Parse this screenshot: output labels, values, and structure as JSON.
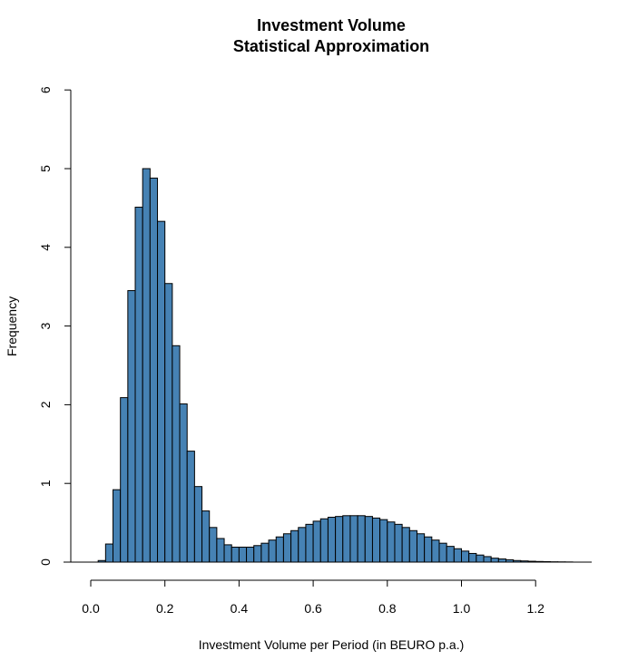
{
  "chart_data": {
    "type": "bar",
    "title": "Investment Volume",
    "subtitle": "Statistical Approximation",
    "xlabel": "Investment Volume per Period (in BEURO p.a.)",
    "ylabel": "Frequency",
    "xlim": [
      0.0,
      1.4
    ],
    "ylim": [
      0,
      6
    ],
    "x_ticks": [
      "0.0",
      "0.2",
      "0.4",
      "0.6",
      "0.8",
      "1.0",
      "1.2"
    ],
    "y_ticks": [
      "0",
      "1",
      "2",
      "3",
      "4",
      "5",
      "6"
    ],
    "grid": false,
    "legend": "none",
    "colors": {
      "bar_fill": "#4682B4",
      "bar_edge": "#000000"
    },
    "bin_width": 0.02,
    "bin_starts": [
      0.02,
      0.04,
      0.06,
      0.08,
      0.1,
      0.12,
      0.14,
      0.16,
      0.18,
      0.2,
      0.22,
      0.24,
      0.26,
      0.28,
      0.3,
      0.32,
      0.34,
      0.36,
      0.38,
      0.4,
      0.42,
      0.44,
      0.46,
      0.48,
      0.5,
      0.52,
      0.54,
      0.56,
      0.58,
      0.6,
      0.62,
      0.64,
      0.66,
      0.68,
      0.7,
      0.72,
      0.74,
      0.76,
      0.78,
      0.8,
      0.82,
      0.84,
      0.86,
      0.88,
      0.9,
      0.92,
      0.94,
      0.96,
      0.98,
      1.0,
      1.02,
      1.04,
      1.06,
      1.08,
      1.1,
      1.12,
      1.14,
      1.16,
      1.18,
      1.2,
      1.22,
      1.24,
      1.26,
      1.28
    ],
    "values": [
      0.02,
      0.23,
      0.92,
      2.09,
      3.45,
      4.51,
      5.0,
      4.88,
      4.33,
      3.54,
      2.75,
      2.01,
      1.41,
      0.96,
      0.65,
      0.44,
      0.3,
      0.22,
      0.19,
      0.19,
      0.19,
      0.21,
      0.24,
      0.28,
      0.32,
      0.36,
      0.4,
      0.44,
      0.48,
      0.52,
      0.55,
      0.57,
      0.58,
      0.59,
      0.59,
      0.59,
      0.58,
      0.56,
      0.54,
      0.51,
      0.48,
      0.44,
      0.4,
      0.36,
      0.32,
      0.28,
      0.24,
      0.2,
      0.17,
      0.14,
      0.11,
      0.09,
      0.07,
      0.05,
      0.04,
      0.03,
      0.02,
      0.015,
      0.011,
      0.008,
      0.006,
      0.004,
      0.003,
      0.002
    ]
  }
}
